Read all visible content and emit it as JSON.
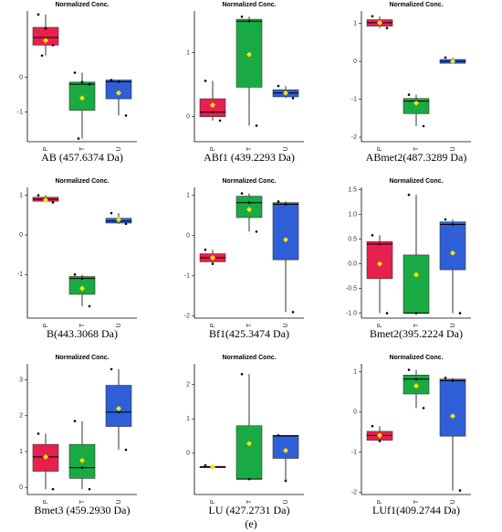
{
  "caption": "(e)",
  "chart_data": [
    {
      "type": "box",
      "title": "Normalized Conc.",
      "xlabel": "AB (457.6374 Da)",
      "categories": [
        "P",
        "T",
        "U"
      ],
      "colors": [
        "#e8204e",
        "#1aaa44",
        "#2e5fd6"
      ],
      "ylim": [
        -1.85,
        1.9
      ],
      "yticks": [
        -1,
        0
      ],
      "boxes": [
        {
          "min": 0.62,
          "q1": 0.92,
          "median": 1.14,
          "q3": 1.43,
          "max": 1.8,
          "mean": 1.05,
          "points": [
            1.8,
            1.4,
            0.92,
            0.62
          ]
        },
        {
          "min": -1.76,
          "q1": -0.95,
          "median": -0.2,
          "q3": -0.14,
          "max": 0.13,
          "mean": -0.6,
          "points": [
            0.13,
            -0.14,
            -0.2,
            -1.76
          ]
        },
        {
          "min": -1.1,
          "q1": -0.62,
          "median": -0.13,
          "q3": -0.08,
          "max": -0.08,
          "mean": -0.45,
          "points": [
            -0.08,
            -0.13,
            -1.1
          ]
        }
      ]
    },
    {
      "type": "box",
      "title": "Normalized Conc.",
      "xlabel": "ABf1 (439.2293 Da)",
      "categories": [
        "P",
        "T",
        "U"
      ],
      "colors": [
        "#e8204e",
        "#1aaa44",
        "#2e5fd6"
      ],
      "ylim": [
        -0.39,
        1.65
      ],
      "yticks": [
        0,
        1
      ],
      "boxes": [
        {
          "min": -0.06,
          "q1": 0.0,
          "median": 0.07,
          "q3": 0.28,
          "max": 0.56,
          "mean": 0.18,
          "points": [
            0.56,
            0.07,
            -0.06
          ]
        },
        {
          "min": -0.14,
          "q1": 0.46,
          "median": 1.49,
          "q3": 1.52,
          "max": 1.56,
          "mean": 0.97,
          "points": [
            1.56,
            1.49,
            -0.14
          ]
        },
        {
          "min": 0.29,
          "q1": 0.31,
          "median": 0.37,
          "q3": 0.42,
          "max": 0.48,
          "mean": 0.37,
          "points": [
            0.48,
            0.37,
            0.29
          ]
        }
      ]
    },
    {
      "type": "box",
      "title": "Normalized Conc.",
      "xlabel": "ABmet2(487.3289 Da)",
      "categories": [
        "P",
        "T",
        "U"
      ],
      "colors": [
        "#e8204e",
        "#1aaa44",
        "#2e5fd6"
      ],
      "ylim": [
        -2.12,
        1.33
      ],
      "yticks": [
        -2,
        -1,
        0,
        1
      ],
      "boxes": [
        {
          "min": 0.88,
          "q1": 0.93,
          "median": 1.02,
          "q3": 1.1,
          "max": 1.19,
          "mean": 1.02,
          "points": [
            1.19,
            1.02,
            0.88
          ]
        },
        {
          "min": -1.71,
          "q1": -1.38,
          "median": -1.05,
          "q3": -0.98,
          "max": -0.88,
          "mean": -1.1,
          "points": [
            -0.88,
            -1.05,
            -1.71
          ]
        },
        {
          "min": -0.05,
          "q1": -0.05,
          "median": 0,
          "q3": 0.05,
          "max": 0.1,
          "mean": 0,
          "points": [
            0.1,
            0
          ]
        }
      ]
    },
    {
      "type": "box",
      "title": "Normalized Conc.",
      "xlabel": "B(443.3068 Da)",
      "categories": [
        "P",
        "T",
        "U"
      ],
      "colors": [
        "#e8204e",
        "#1aaa44",
        "#2e5fd6"
      ],
      "ylim": [
        -2.1,
        1.2
      ],
      "yticks": [
        -1,
        0,
        1
      ],
      "boxes": [
        {
          "min": 0.82,
          "q1": 0.85,
          "median": 0.9,
          "q3": 0.95,
          "max": 1.0,
          "mean": 0.88,
          "points": [
            1.0,
            0.9,
            0.82
          ]
        },
        {
          "min": -1.8,
          "q1": -1.5,
          "median": -1.1,
          "q3": -1.05,
          "max": -1.0,
          "mean": -1.35,
          "points": [
            -1.0,
            -1.1,
            -1.8
          ]
        },
        {
          "min": 0.28,
          "q1": 0.3,
          "median": 0.35,
          "q3": 0.42,
          "max": 0.55,
          "mean": 0.38,
          "points": [
            0.55,
            0.35,
            0.28
          ]
        }
      ]
    },
    {
      "type": "box",
      "title": "Normalized Conc.",
      "xlabel": "Bf1(425.3474 Da)",
      "categories": [
        "P",
        "T",
        "U"
      ],
      "colors": [
        "#e8204e",
        "#1aaa44",
        "#2e5fd6"
      ],
      "ylim": [
        -2.05,
        1.2
      ],
      "yticks": [
        -2,
        -1,
        0,
        1
      ],
      "boxes": [
        {
          "min": -0.7,
          "q1": -0.65,
          "median": -0.55,
          "q3": -0.45,
          "max": -0.35,
          "mean": -0.55,
          "points": [
            -0.35,
            -0.7
          ]
        },
        {
          "min": 0.1,
          "q1": 0.45,
          "median": 0.82,
          "q3": 0.98,
          "max": 1.05,
          "mean": 0.65,
          "points": [
            1.05,
            0.82,
            0.1
          ]
        },
        {
          "min": -1.9,
          "q1": -0.6,
          "median": 0.78,
          "q3": 0.82,
          "max": 0.85,
          "mean": -0.1,
          "points": [
            0.85,
            0.78,
            -1.9
          ]
        }
      ]
    },
    {
      "type": "box",
      "title": "Normalized Conc.",
      "xlabel": "Bmet2(395.2224 Da)",
      "categories": [
        "P",
        "T",
        "U"
      ],
      "colors": [
        "#e8204e",
        "#1aaa44",
        "#2e5fd6"
      ],
      "ylim": [
        -1.1,
        1.55
      ],
      "yticks": [
        {
          "value": -1,
          "label": "-1.0"
        },
        -0.5,
        {
          "value": 0,
          "label": "0.0"
        },
        0.5,
        {
          "value": 1,
          "label": "1.0"
        },
        1.5
      ],
      "boxes": [
        {
          "min": -1.0,
          "q1": -0.3,
          "median": 0.4,
          "q3": 0.45,
          "max": 0.58,
          "mean": 0,
          "points": [
            0.58,
            0.4,
            -1.0
          ]
        },
        {
          "min": -1.0,
          "q1": -1.0,
          "median": -1.0,
          "q3": 0.18,
          "max": 1.4,
          "mean": -0.22,
          "points": [
            1.4,
            -1.0
          ]
        },
        {
          "min": -1.0,
          "q1": -0.12,
          "median": 0.8,
          "q3": 0.85,
          "max": 0.9,
          "mean": 0.22,
          "points": [
            0.9,
            0.8,
            -1.0
          ]
        }
      ]
    },
    {
      "type": "box",
      "title": "Normalized Conc.",
      "xlabel": "Bmet3 (459.2930 Da)",
      "categories": [
        "P",
        "T",
        "U"
      ],
      "colors": [
        "#e8204e",
        "#1aaa44",
        "#2e5fd6"
      ],
      "ylim": [
        -0.2,
        3.45
      ],
      "yticks": [
        0,
        1,
        2,
        3
      ],
      "boxes": [
        {
          "min": -0.05,
          "q1": 0.45,
          "median": 0.85,
          "q3": 1.2,
          "max": 1.5,
          "mean": 0.85,
          "points": [
            1.5,
            0.85,
            -0.05
          ]
        },
        {
          "min": -0.05,
          "q1": 0.25,
          "median": 0.55,
          "q3": 1.2,
          "max": 1.85,
          "mean": 0.75,
          "points": [
            1.85,
            0.55,
            -0.05
          ]
        },
        {
          "min": 1.05,
          "q1": 1.7,
          "median": 2.1,
          "q3": 2.85,
          "max": 3.3,
          "mean": 2.2,
          "points": [
            3.3,
            2.1,
            1.05
          ]
        }
      ]
    },
    {
      "type": "box",
      "title": "Normalized Conc.",
      "xlabel": "LU (427.2731 Da)",
      "categories": [
        "P",
        "T",
        "U"
      ],
      "colors": [
        "#e8204e",
        "#1aaa44",
        "#2e5fd6"
      ],
      "ylim": [
        -1.2,
        2.6
      ],
      "yticks": [
        0,
        1,
        2
      ],
      "boxes": [
        {
          "min": -0.42,
          "q1": -0.42,
          "median": -0.4,
          "q3": -0.38,
          "max": -0.35,
          "mean": -0.4,
          "points": [
            -0.35,
            -0.42
          ]
        },
        {
          "min": -0.75,
          "q1": -0.75,
          "median": -0.75,
          "q3": 0.8,
          "max": 2.3,
          "mean": 0.28,
          "points": [
            2.3,
            -0.75
          ]
        },
        {
          "min": -0.8,
          "q1": -0.15,
          "median": 0.5,
          "q3": 0.52,
          "max": 0.52,
          "mean": 0.08,
          "points": [
            0.52,
            -0.8
          ]
        }
      ]
    },
    {
      "type": "box",
      "title": "Normalized Conc.",
      "xlabel": "LUf1(409.2744 Da)",
      "categories": [
        "P",
        "T",
        "U"
      ],
      "colors": [
        "#e8204e",
        "#1aaa44",
        "#2e5fd6"
      ],
      "ylim": [
        -2.05,
        1.2
      ],
      "yticks": [
        -2,
        -1,
        0,
        1
      ],
      "boxes": [
        {
          "min": -0.72,
          "q1": -0.7,
          "median": -0.58,
          "q3": -0.48,
          "max": -0.35,
          "mean": -0.58,
          "points": [
            -0.35,
            -0.72
          ]
        },
        {
          "min": 0.1,
          "q1": 0.45,
          "median": 0.82,
          "q3": 0.92,
          "max": 1.05,
          "mean": 0.65,
          "points": [
            1.05,
            0.82,
            0.1
          ]
        },
        {
          "min": -1.95,
          "q1": -0.6,
          "median": 0.78,
          "q3": 0.82,
          "max": 0.85,
          "mean": -0.1,
          "points": [
            0.85,
            0.78,
            -1.95
          ]
        }
      ]
    }
  ]
}
